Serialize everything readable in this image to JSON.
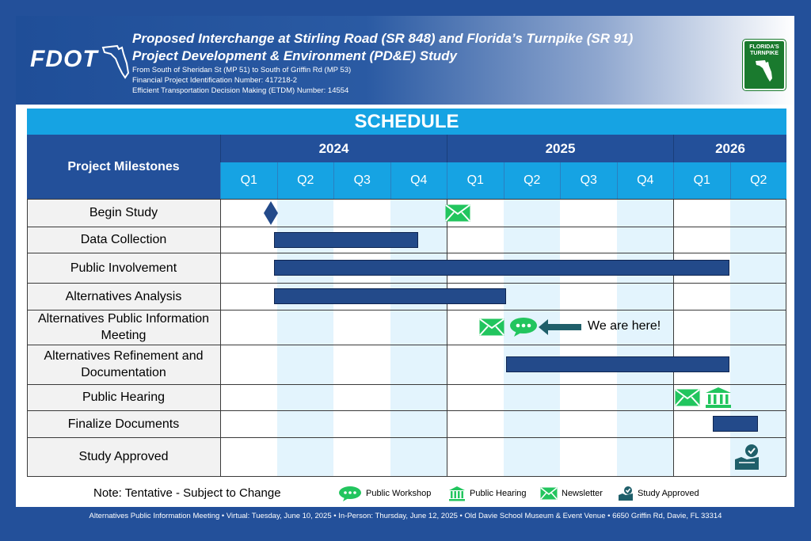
{
  "header": {
    "logo_text": "FDOT",
    "title_line1": "Proposed Interchange at Stirling Road (SR 848) and Florida’s Turnpike (SR 91)",
    "title_line2": "Project Development & Environment (PD&E) Study",
    "sub1": "From South of Sheridan St (MP 51) to South of Griffin Rd (MP 53)",
    "sub2": "Financial Project Identification Number:  417218-2",
    "sub3": "Efficient Transportation Decision Making (ETDM) Number: 14554",
    "turnpike_logo_text": "FLORIDA'S TURNPIKE"
  },
  "chart_data": {
    "type": "gantt",
    "title": "SCHEDULE",
    "row_header": "Project Milestones",
    "years": [
      {
        "label": "2024",
        "quarters": 4
      },
      {
        "label": "2025",
        "quarters": 4
      },
      {
        "label": "2026",
        "quarters": 2
      }
    ],
    "quarters": [
      "Q1",
      "Q2",
      "Q3",
      "Q4",
      "Q1",
      "Q2",
      "Q3",
      "Q4",
      "Q1",
      "Q2"
    ],
    "tasks": [
      {
        "name": "Begin Study",
        "milestones": [
          {
            "icon": "diamond",
            "at": 0.9
          },
          {
            "icon": "newsletter-icon",
            "at": 4.2
          }
        ]
      },
      {
        "name": "Data Collection",
        "start": 0.95,
        "end": 3.5
      },
      {
        "name": "Public Involvement",
        "start": 0.95,
        "end": 9.0
      },
      {
        "name": "Alternatives Analysis",
        "start": 0.95,
        "end": 5.05
      },
      {
        "name": "Alternatives Public Information Meeting",
        "milestones": [
          {
            "icon": "newsletter-icon",
            "at": 4.8
          },
          {
            "icon": "public-workshop-icon",
            "at": 5.35
          },
          {
            "icon": "arrow-left-icon",
            "at": 6.0
          }
        ]
      },
      {
        "name": "Alternatives Refinement and Documentation",
        "start": 5.05,
        "end": 9.0
      },
      {
        "name": "Public Hearing",
        "milestones": [
          {
            "icon": "newsletter-icon",
            "at": 8.25
          },
          {
            "icon": "public-hearing-icon",
            "at": 8.8
          }
        ]
      },
      {
        "name": "Finalize Documents",
        "start": 8.7,
        "end": 9.5
      },
      {
        "name": "Study Approved",
        "milestones": [
          {
            "icon": "study-approved-icon",
            "at": 9.3
          }
        ]
      }
    ],
    "annotation": "We are here!"
  },
  "note": "Note:  Tentative - Subject to Change",
  "legend": [
    {
      "icon": "public-workshop-icon",
      "label": "Public Workshop"
    },
    {
      "icon": "public-hearing-icon",
      "label": "Public Hearing"
    },
    {
      "icon": "newsletter-icon",
      "label": "Newsletter"
    },
    {
      "icon": "study-approved-icon",
      "label": "Study Approved"
    }
  ],
  "footer": "Alternatives Public Information Meeting  • Virtual: Tuesday, June 10, 2025 • In-Person: Thursday, June 12, 2025 • Old Davie School Museum & Event Venue • 6650 Griffin Rd, Davie, FL  33314",
  "colors": {
    "navy": "#23509a",
    "cyan": "#16a3e3",
    "bar": "#234a8a",
    "icon_green": "#22c55e",
    "approved_teal": "#1f5f6a"
  }
}
